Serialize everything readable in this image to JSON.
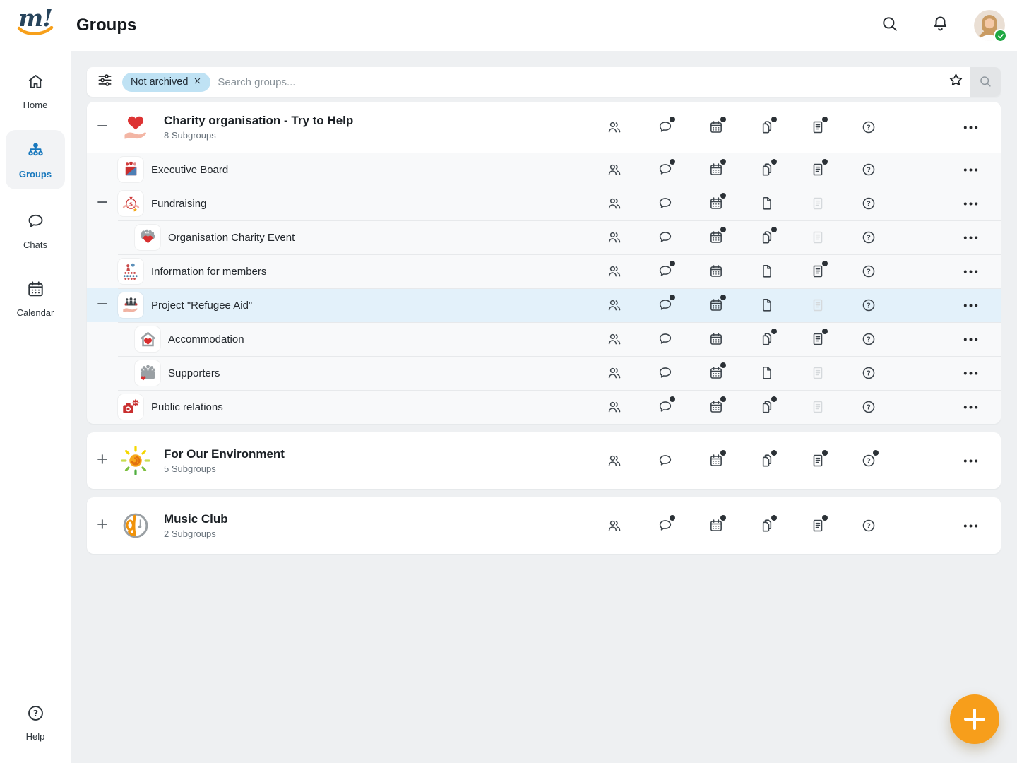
{
  "topbar": {
    "logo_text": "m!",
    "title": "Groups",
    "search_icon": "search-icon",
    "notifications_icon": "bell-icon",
    "avatar_status": "online"
  },
  "sidebar": {
    "items": [
      {
        "id": "home",
        "label": "Home",
        "icon": "home",
        "active": false
      },
      {
        "id": "groups",
        "label": "Groups",
        "icon": "orgchart",
        "active": true
      },
      {
        "id": "chats",
        "label": "Chats",
        "icon": "chat",
        "active": false
      },
      {
        "id": "calendar",
        "label": "Calendar",
        "icon": "calendarbig",
        "active": false
      }
    ],
    "help": {
      "label": "Help",
      "icon": "helpbig"
    }
  },
  "filterbar": {
    "filter_icon": "sliders-icon",
    "chip": "Not archived",
    "chip_close_icon": "close-icon",
    "placeholder": "Search groups...",
    "favorite_icon": "star-icon",
    "search_button_icon": "search-icon"
  },
  "action_columns": [
    "members",
    "chat",
    "calendar",
    "files",
    "notes",
    "help"
  ],
  "groups": {
    "cards": [
      {
        "rows": [
          {
            "title": "Charity organisation - Try to Help",
            "subtitle": "8 Subgroups",
            "level": 0,
            "toggle": "collapse",
            "avatar_icon": "heart-hand",
            "actions": {
              "members": "plain",
              "chat": "dot",
              "calendar": "dot",
              "files": "dot",
              "notes": "dot",
              "help": "plain"
            }
          },
          {
            "title": "Executive Board",
            "level": 1,
            "toggle": null,
            "avatar_icon": "executive-board",
            "actions": {
              "members": "plain",
              "chat": "dot",
              "calendar": "dot",
              "files": "dot",
              "notes": "dot",
              "help": "plain"
            }
          },
          {
            "title": "Fundraising",
            "level": 1,
            "toggle": "collapse",
            "avatar_icon": "fundraising",
            "actions": {
              "members": "plain",
              "chat": "plain",
              "calendar": "dot",
              "files": "plain",
              "notes": "disabled",
              "help": "plain"
            }
          },
          {
            "title": "Organisation Charity Event",
            "level": 2,
            "toggle": null,
            "avatar_icon": "charity-event",
            "actions": {
              "members": "plain",
              "chat": "plain",
              "calendar": "dot",
              "files": "dot",
              "notes": "disabled",
              "help": "plain"
            }
          },
          {
            "title": "Information for members",
            "level": 1,
            "toggle": null,
            "avatar_icon": "info-members",
            "actions": {
              "members": "plain",
              "chat": "dot",
              "calendar": "plain",
              "files": "plain",
              "notes": "dot",
              "help": "plain"
            }
          },
          {
            "title": "Project \"Refugee Aid\"",
            "level": 1,
            "toggle": "collapse",
            "avatar_icon": "refugee-aid",
            "highlight": true,
            "actions": {
              "members": "plain",
              "chat": "dot",
              "calendar": "dot",
              "files": "plain",
              "notes": "disabled",
              "help": "plain"
            }
          },
          {
            "title": "Accommodation",
            "level": 2,
            "toggle": null,
            "avatar_icon": "accommodation",
            "actions": {
              "members": "plain",
              "chat": "plain",
              "calendar": "plain",
              "files": "dot",
              "notes": "dot",
              "help": "plain"
            }
          },
          {
            "title": "Supporters",
            "level": 2,
            "toggle": null,
            "avatar_icon": "supporters",
            "actions": {
              "members": "plain",
              "chat": "plain",
              "calendar": "dot",
              "files": "plain",
              "notes": "disabled",
              "help": "plain"
            }
          },
          {
            "title": "Public relations",
            "level": 1,
            "toggle": null,
            "avatar_icon": "public-relations",
            "actions": {
              "members": "plain",
              "chat": "dot",
              "calendar": "dot",
              "files": "dot",
              "notes": "disabled",
              "help": "plain"
            }
          }
        ]
      },
      {
        "rows": [
          {
            "title": "For Our Environment",
            "subtitle": "5 Subgroups",
            "level": 0,
            "toggle": "expand",
            "avatar_icon": "environment-sun",
            "actions": {
              "members": "plain",
              "chat": "plain",
              "calendar": "dot",
              "files": "dot",
              "notes": "dot",
              "help": "dot"
            }
          }
        ]
      },
      {
        "rows": [
          {
            "title": "Music Club",
            "subtitle": "2 Subgroups",
            "level": 0,
            "toggle": "expand",
            "avatar_icon": "music-club",
            "actions": {
              "members": "plain",
              "chat": "dot",
              "calendar": "dot",
              "files": "dot",
              "notes": "dot",
              "help": "plain"
            }
          }
        ]
      }
    ]
  },
  "fab": {
    "icon": "plus-icon"
  },
  "colors": {
    "accent_blue": "#1878BD",
    "chip_blue": "#BFE2F4",
    "row_highlight": "#E3F1FA",
    "fab_orange": "#F79E1B",
    "status_green": "#1FA843",
    "notification_dot": "#2B3136",
    "page_background": "#EEF0F2"
  }
}
